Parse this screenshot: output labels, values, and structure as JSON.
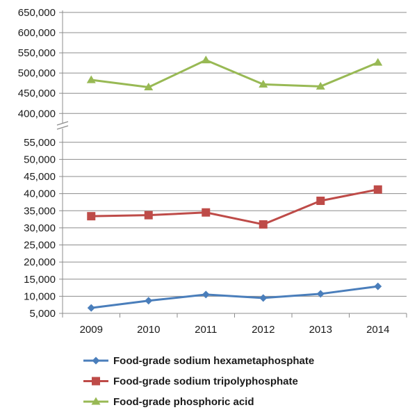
{
  "chart_data": {
    "type": "line",
    "categories": [
      "2009",
      "2010",
      "2011",
      "2012",
      "2013",
      "2014"
    ],
    "y_axis_broken": true,
    "y_upper": {
      "ylim": [
        385000,
        655000
      ],
      "ticks": [
        "400,000",
        "450,000",
        "500,000",
        "550,000",
        "600,000",
        "650,000"
      ],
      "tick_values": [
        400000,
        450000,
        500000,
        550000,
        600000,
        650000
      ]
    },
    "y_lower": {
      "ylim": [
        5000,
        58000
      ],
      "ticks": [
        "5,000",
        "10,000",
        "15,000",
        "20,000",
        "25,000",
        "30,000",
        "35,000",
        "40,000",
        "45,000",
        "50,000",
        "55,000"
      ],
      "tick_values": [
        5000,
        10000,
        15000,
        20000,
        25000,
        30000,
        35000,
        40000,
        45000,
        50000,
        55000
      ]
    },
    "grid": true,
    "legend_position": "bottom",
    "series": [
      {
        "name": "Food-grade sodium hexametaphosphate",
        "color": "#4a7ebb",
        "marker": "diamond",
        "axis": "lower",
        "values": [
          6600,
          8700,
          10500,
          9500,
          10700,
          12900
        ]
      },
      {
        "name": "Food-grade sodium tripolyphosphate",
        "color": "#be4b48",
        "marker": "square",
        "axis": "lower",
        "values": [
          33400,
          33700,
          34500,
          31000,
          37900,
          41200
        ]
      },
      {
        "name": "Food-grade phosphoric acid",
        "color": "#98b954",
        "marker": "triangle",
        "axis": "upper",
        "values": [
          483000,
          465000,
          532000,
          472000,
          467000,
          526000
        ]
      }
    ]
  }
}
